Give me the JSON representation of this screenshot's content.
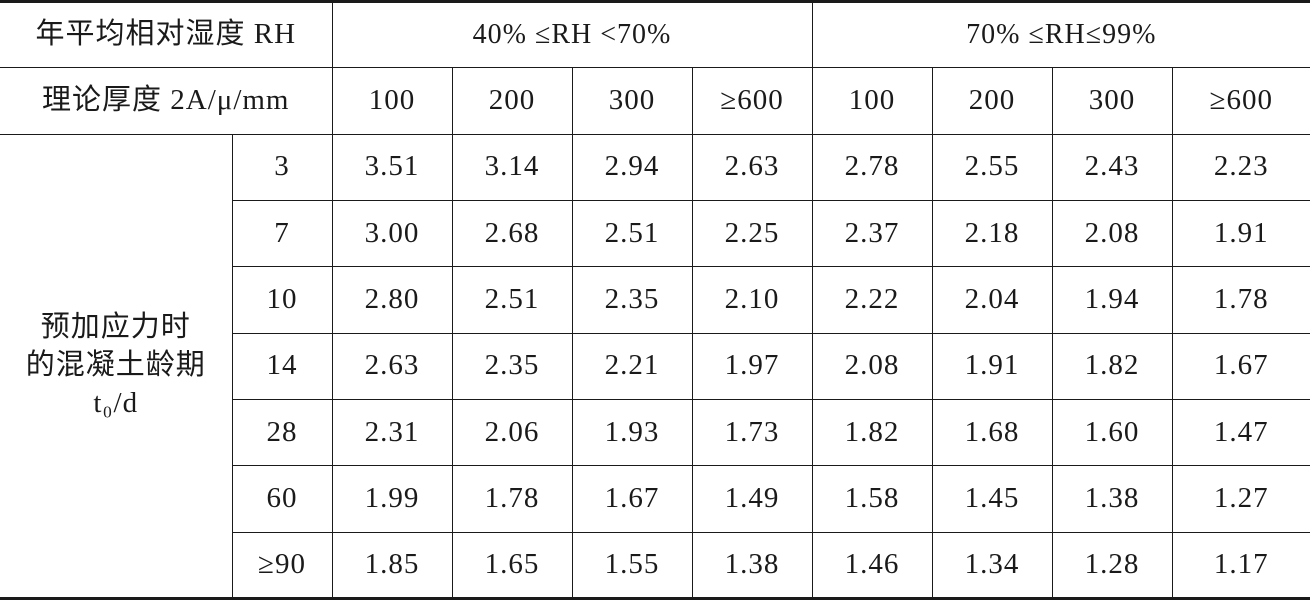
{
  "table": {
    "header": {
      "rh_label": "年平均相对湿度 RH",
      "rh_groups": [
        "40% ≤RH <70%",
        "70% ≤RH≤99%"
      ],
      "thickness_label": "理论厚度 2A/μ/mm",
      "thicknesses": [
        "100",
        "200",
        "300",
        "≥600",
        "100",
        "200",
        "300",
        "≥600"
      ]
    },
    "row_group_label": [
      "预加应力时",
      "的混凝土龄期",
      "t₀/d"
    ],
    "rows": [
      {
        "age": "3",
        "values": [
          "3.51",
          "3.14",
          "2.94",
          "2.63",
          "2.78",
          "2.55",
          "2.43",
          "2.23"
        ]
      },
      {
        "age": "7",
        "values": [
          "3.00",
          "2.68",
          "2.51",
          "2.25",
          "2.37",
          "2.18",
          "2.08",
          "1.91"
        ]
      },
      {
        "age": "10",
        "values": [
          "2.80",
          "2.51",
          "2.35",
          "2.10",
          "2.22",
          "2.04",
          "1.94",
          "1.78"
        ]
      },
      {
        "age": "14",
        "values": [
          "2.63",
          "2.35",
          "2.21",
          "1.97",
          "2.08",
          "1.91",
          "1.82",
          "1.67"
        ]
      },
      {
        "age": "28",
        "values": [
          "2.31",
          "2.06",
          "1.93",
          "1.73",
          "1.82",
          "1.68",
          "1.60",
          "1.47"
        ]
      },
      {
        "age": "60",
        "values": [
          "1.99",
          "1.78",
          "1.67",
          "1.49",
          "1.58",
          "1.45",
          "1.38",
          "1.27"
        ]
      },
      {
        "age": "≥90",
        "values": [
          "1.85",
          "1.65",
          "1.55",
          "1.38",
          "1.46",
          "1.34",
          "1.28",
          "1.17"
        ]
      }
    ]
  }
}
